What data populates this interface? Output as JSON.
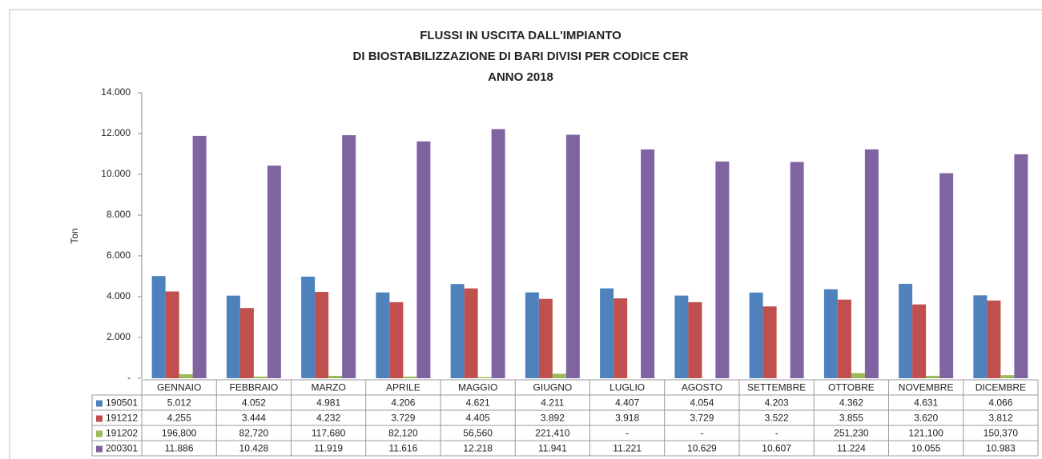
{
  "chart_data": {
    "type": "bar",
    "title": [
      "FLUSSI IN USCITA DALL'IMPIANTO",
      "DI BIOSTABILIZZAZIONE DI BARI DIVISI PER CODICE CER",
      "ANNO 2018"
    ],
    "y_label": "Ton",
    "categories": [
      "GENNAIO",
      "FEBBRAIO",
      "MARZO",
      "APRILE",
      "MAGGIO",
      "GIUGNO",
      "LUGLIO",
      "AGOSTO",
      "SETTEMBRE",
      "OTTOBRE",
      "NOVEMBRE",
      "DICEMBRE"
    ],
    "series": [
      {
        "name": "190501",
        "color": "#4f81bd",
        "values": [
          5012,
          4052,
          4981,
          4206,
          4621,
          4211,
          4407,
          4054,
          4203,
          4362,
          4631,
          4066
        ],
        "value_labels": [
          "5.012",
          "4.052",
          "4.981",
          "4.206",
          "4.621",
          "4.211",
          "4.407",
          "4.054",
          "4.203",
          "4.362",
          "4.631",
          "4.066"
        ]
      },
      {
        "name": "191212",
        "color": "#c0504d",
        "values": [
          4255,
          3444,
          4232,
          3729,
          4405,
          3892,
          3918,
          3729,
          3522,
          3855,
          3620,
          3812
        ],
        "value_labels": [
          "4.255",
          "3.444",
          "4.232",
          "3.729",
          "4.405",
          "3.892",
          "3.918",
          "3.729",
          "3.522",
          "3.855",
          "3.620",
          "3.812"
        ]
      },
      {
        "name": "191202",
        "color": "#9bbb59",
        "values": [
          196.8,
          82.72,
          117.68,
          82.12,
          56.56,
          221.41,
          0,
          0,
          0,
          251.23,
          121.1,
          150.37
        ],
        "value_labels": [
          "196,800",
          "82,720",
          "117,680",
          "82,120",
          "56,560",
          "221,410",
          "-",
          "-",
          "-",
          "251,230",
          "121,100",
          "150,370"
        ]
      },
      {
        "name": "200301",
        "color": "#8064a2",
        "values": [
          11886,
          10428,
          11919,
          11616,
          12218,
          11941,
          11221,
          10629,
          10607,
          11224,
          10055,
          10983
        ],
        "value_labels": [
          "11.886",
          "10.428",
          "11.919",
          "11.616",
          "12.218",
          "11.941",
          "11.221",
          "10.629",
          "10.607",
          "11.224",
          "10.055",
          "10.983"
        ]
      }
    ],
    "ylim": [
      0,
      14000
    ],
    "yticks": [
      {
        "value": 0,
        "label": "-"
      },
      {
        "value": 2000,
        "label": "2.000"
      },
      {
        "value": 4000,
        "label": "4.000"
      },
      {
        "value": 6000,
        "label": "6.000"
      },
      {
        "value": 8000,
        "label": "8.000"
      },
      {
        "value": 10000,
        "label": "10.000"
      },
      {
        "value": 12000,
        "label": "12.000"
      },
      {
        "value": 14000,
        "label": "14.000"
      }
    ],
    "grid": false
  }
}
